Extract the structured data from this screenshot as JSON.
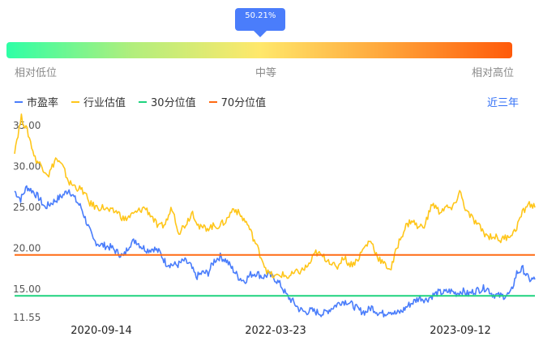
{
  "gauge": {
    "percentile_label": "50.21%",
    "percentile": 0.5021,
    "labels": {
      "low": "相对低位",
      "mid": "中等",
      "high": "相对高位"
    },
    "colors": [
      "#2effa6",
      "#ffe86b",
      "#ff5a0a"
    ]
  },
  "range_selector": "近三年",
  "chart_data": {
    "type": "line",
    "series": [
      {
        "name": "市盈率",
        "color": "#4a7dfb",
        "values": [
          27.0,
          26.0,
          27.5,
          27.0,
          26.2,
          25.0,
          25.5,
          26.0,
          26.5,
          27.2,
          26.0,
          25.0,
          23.0,
          21.0,
          20.5,
          20.3,
          20.1,
          19.5,
          19.0,
          20.5,
          21.0,
          20.2,
          19.8,
          20.0,
          19.5,
          18.2,
          18.0,
          18.0,
          18.5,
          18.0,
          16.5,
          17.0,
          17.0,
          18.5,
          19.0,
          18.5,
          17.5,
          16.5,
          16.0,
          16.8,
          17.0,
          16.5,
          16.8,
          16.3,
          15.5,
          14.2,
          13.5,
          12.6,
          12.2,
          12.4,
          12.2,
          12.0,
          12.5,
          13.0,
          13.5,
          13.5,
          13.0,
          12.4,
          12.2,
          12.8,
          12.2,
          12.0,
          12.4,
          12.0,
          12.3,
          13.0,
          13.5,
          14.0,
          13.7,
          14.2,
          14.6,
          14.6,
          14.8,
          14.5,
          14.8,
          14.4,
          14.8,
          15.0,
          15.2,
          14.4,
          14.2,
          14.2,
          14.5,
          17.0,
          17.5,
          16.2,
          16.2
        ]
      },
      {
        "name": "行业估值",
        "color": "#ffc61a",
        "values": [
          32.0,
          36.0,
          34.0,
          31.0,
          30.0,
          29.0,
          31.0,
          30.0,
          28.0,
          27.5,
          27.0,
          25.5,
          25.0,
          25.0,
          24.5,
          24.5,
          23.5,
          24.0,
          24.5,
          25.0,
          24.0,
          22.5,
          23.0,
          25.0,
          22.0,
          23.0,
          24.5,
          22.5,
          22.5,
          22.7,
          22.8,
          23.5,
          25.0,
          24.0,
          23.0,
          21.0,
          19.0,
          17.0,
          16.5,
          16.8,
          16.5,
          17.0,
          17.3,
          18.0,
          19.5,
          19.0,
          18.5,
          17.5,
          19.0,
          18.0,
          18.5,
          20.0,
          21.0,
          19.0,
          18.0,
          17.5,
          20.5,
          22.5,
          23.5,
          22.5,
          23.0,
          25.5,
          24.5,
          25.0,
          24.8,
          27.0,
          24.5,
          23.5,
          22.5,
          21.5,
          21.5,
          21.0,
          21.5,
          22.0,
          24.0,
          25.5,
          25.0
        ]
      },
      {
        "name": "30分位值",
        "color": "#1ed37e",
        "values": [
          14.2
        ]
      },
      {
        "name": "70分位值",
        "color": "#ff6a13",
        "values": [
          19.2
        ]
      }
    ],
    "x_ticks": [
      "2020-09-14",
      "2022-03-23",
      "2023-09-12"
    ],
    "y_ticks": [
      "11.55",
      "15.00",
      "20.00",
      "25.00",
      "30.00",
      "35.00"
    ],
    "ylim": [
      11.55,
      36.5
    ],
    "legend_position": "top-left",
    "grid": false
  }
}
